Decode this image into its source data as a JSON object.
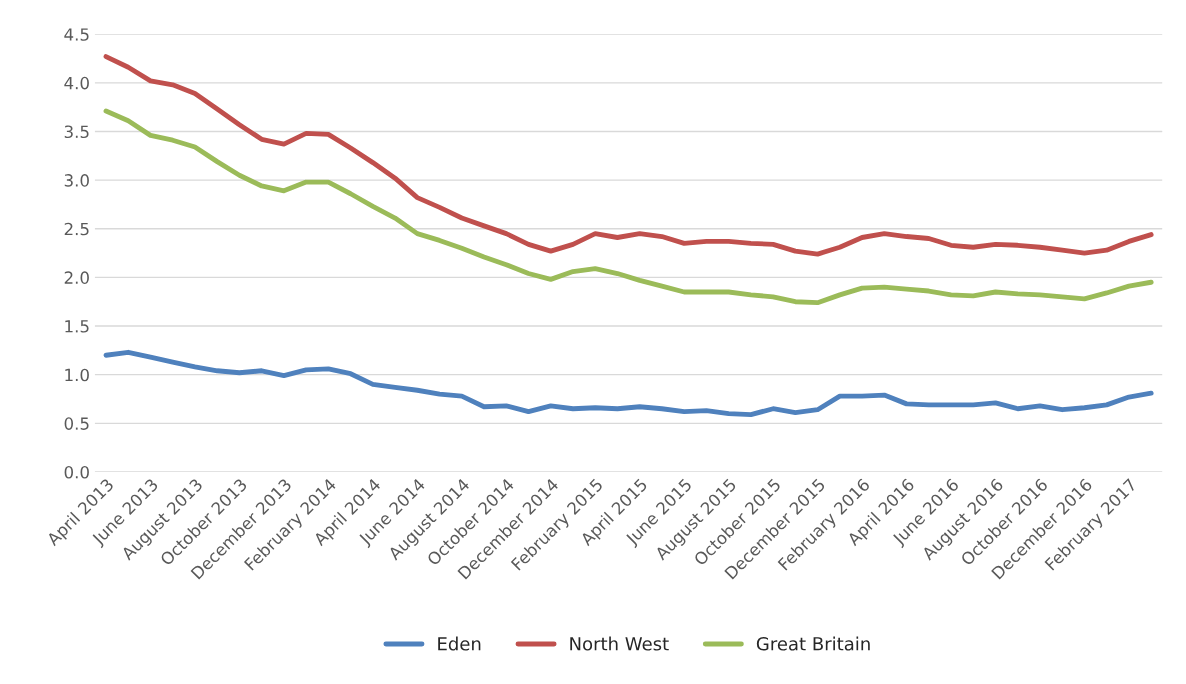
{
  "chart_data": {
    "type": "line",
    "categories": [
      "April 2013",
      null,
      "June 2013",
      null,
      "August 2013",
      null,
      "October 2013",
      null,
      "December 2013",
      null,
      "February 2014",
      null,
      "April 2014",
      null,
      "June 2014",
      null,
      "August 2014",
      null,
      "October 2014",
      null,
      "December 2014",
      null,
      "February 2015",
      null,
      "April 2015",
      null,
      "June 2015",
      null,
      "August 2015",
      null,
      "October 2015",
      null,
      "December 2015",
      null,
      "February 2016",
      null,
      "April 2016",
      null,
      "June 2016",
      null,
      "August 2016",
      null,
      "October 2016",
      null,
      "December 2016",
      null,
      "February 2017",
      null
    ],
    "series": [
      {
        "name": "Eden",
        "color": "#4f81bd",
        "values": [
          1.2,
          1.23,
          1.18,
          1.13,
          1.08,
          1.04,
          1.02,
          1.04,
          0.99,
          1.05,
          1.06,
          1.01,
          0.9,
          0.87,
          0.84,
          0.8,
          0.78,
          0.67,
          0.68,
          0.62,
          0.68,
          0.65,
          0.66,
          0.65,
          0.67,
          0.65,
          0.62,
          0.63,
          0.6,
          0.59,
          0.65,
          0.61,
          0.64,
          0.78,
          0.78,
          0.79,
          0.7,
          0.69,
          0.69,
          0.69,
          0.71,
          0.65,
          0.68,
          0.64,
          0.66,
          0.69,
          0.77,
          0.81
        ]
      },
      {
        "name": "North West",
        "color": "#c0504d",
        "values": [
          4.27,
          4.16,
          4.02,
          3.98,
          3.89,
          3.73,
          3.57,
          3.42,
          3.37,
          3.48,
          3.47,
          3.33,
          3.18,
          3.02,
          2.82,
          2.72,
          2.61,
          2.53,
          2.45,
          2.34,
          2.27,
          2.34,
          2.45,
          2.41,
          2.45,
          2.42,
          2.35,
          2.37,
          2.37,
          2.35,
          2.34,
          2.27,
          2.24,
          2.31,
          2.41,
          2.45,
          2.42,
          2.4,
          2.33,
          2.31,
          2.34,
          2.33,
          2.31,
          2.28,
          2.25,
          2.28,
          2.37,
          2.44
        ]
      },
      {
        "name": "Great Britain",
        "color": "#9bbb59",
        "values": [
          3.71,
          3.61,
          3.46,
          3.41,
          3.34,
          3.19,
          3.05,
          2.94,
          2.89,
          2.98,
          2.98,
          2.86,
          2.73,
          2.61,
          2.45,
          2.38,
          2.3,
          2.21,
          2.13,
          2.04,
          1.98,
          2.06,
          2.09,
          2.04,
          1.97,
          1.91,
          1.85,
          1.85,
          1.85,
          1.82,
          1.8,
          1.75,
          1.74,
          1.82,
          1.89,
          1.9,
          1.88,
          1.86,
          1.82,
          1.81,
          1.85,
          1.83,
          1.82,
          1.8,
          1.78,
          1.84,
          1.91,
          1.95
        ]
      }
    ],
    "ylim": [
      0,
      4.5
    ],
    "yticks": [
      {
        "value": 0,
        "label": "0.0"
      },
      {
        "value": 0.5,
        "label": "0.5"
      },
      {
        "value": 1,
        "label": "1.0"
      },
      {
        "value": 1.5,
        "label": "1.5"
      },
      {
        "value": 2,
        "label": "2.0"
      },
      {
        "value": 2.5,
        "label": "2.5"
      },
      {
        "value": 3,
        "label": "3.0"
      },
      {
        "value": 3.5,
        "label": "3.5"
      },
      {
        "value": 4,
        "label": "4.0"
      },
      {
        "value": 4.5,
        "label": "4.5"
      }
    ],
    "grid": "y",
    "legend": "bottom",
    "marker": "none",
    "line_style": "solid"
  }
}
